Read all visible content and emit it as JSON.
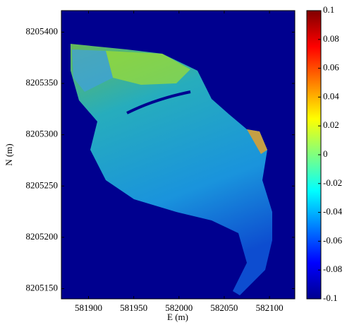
{
  "chart_data": {
    "type": "image",
    "xlabel": "E (m)",
    "ylabel": "N (m)",
    "xlim": [
      581870,
      582128
    ],
    "xticks": [
      581900,
      581950,
      582000,
      582050,
      582100
    ],
    "ylim": [
      8205140,
      8205421
    ],
    "yticks": [
      8205150,
      8205200,
      8205250,
      8205300,
      8205350,
      8205400
    ],
    "background": "#00008f",
    "colormap": "jet",
    "colorbar": {
      "clim": [
        -0.1,
        0.1
      ],
      "ticks": [
        -0.1,
        -0.08,
        -0.06,
        -0.04,
        -0.02,
        0,
        0.02,
        0.04,
        0.06,
        0.08,
        0.1
      ]
    }
  }
}
